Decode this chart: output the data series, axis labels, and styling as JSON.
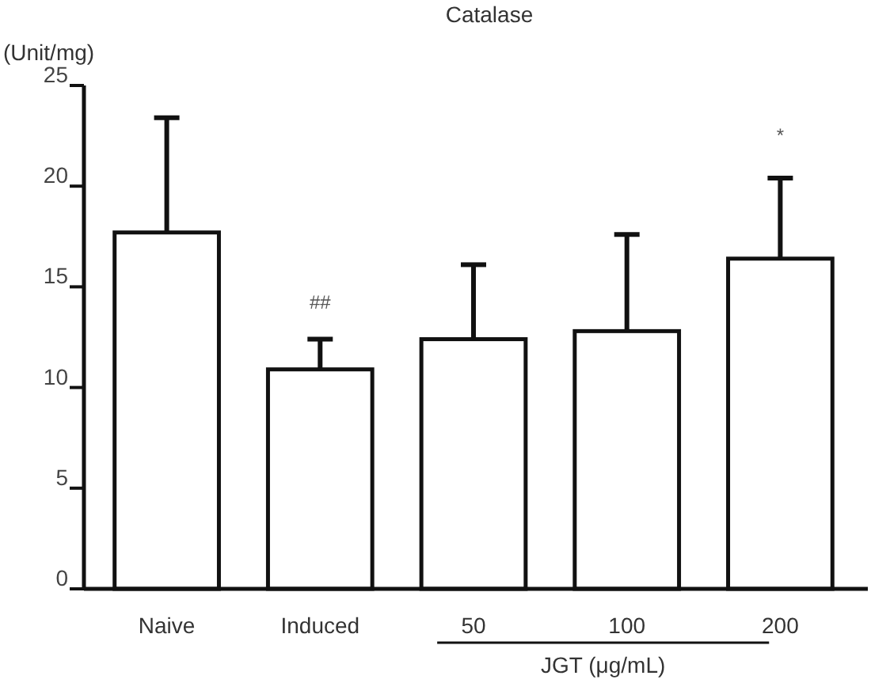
{
  "chart_data": {
    "type": "bar",
    "title": "Catalase",
    "ylabel": "(Unit/mg)",
    "xlabel": "JGT (μg/mL)",
    "categories": [
      "Naive",
      "Induced",
      "50",
      "100",
      "200"
    ],
    "values": [
      17.7,
      10.9,
      12.4,
      12.8,
      16.4
    ],
    "errors": [
      [
        17.7,
        23.4
      ],
      [
        10.9,
        12.4
      ],
      [
        12.4,
        16.1
      ],
      [
        12.8,
        17.6
      ],
      [
        16.4,
        20.4
      ]
    ],
    "color": "#ffffff",
    "ylim": [
      0,
      25
    ],
    "yticks": [
      0,
      5,
      10,
      15,
      20,
      25
    ],
    "annotations": [
      "##",
      "*"
    ]
  }
}
